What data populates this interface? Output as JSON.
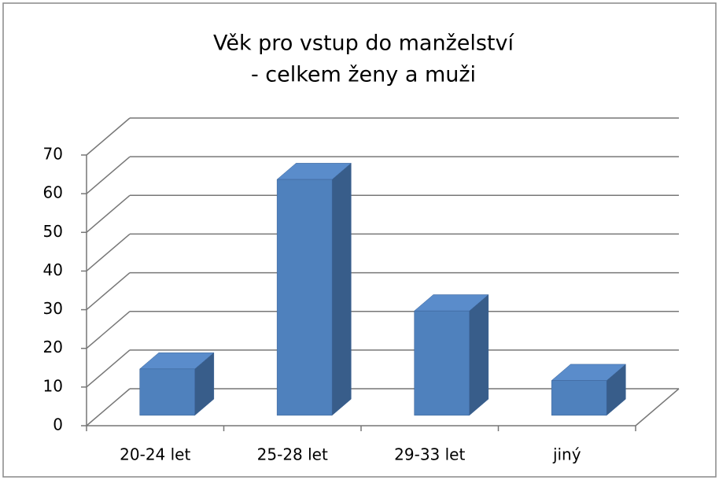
{
  "chart_data": {
    "type": "bar3d",
    "title": [
      "Věk pro vstup do manželství",
      "- celkem ženy a muži"
    ],
    "categories": [
      "20-24 let",
      "25-28 let",
      "29-33 let",
      "jiný"
    ],
    "values": [
      12,
      61,
      27,
      9
    ],
    "color": "#4f81bd",
    "ylim": [
      0,
      70
    ],
    "yticks": [
      0,
      10,
      20,
      30,
      40,
      50,
      60,
      70
    ],
    "grid": true
  }
}
